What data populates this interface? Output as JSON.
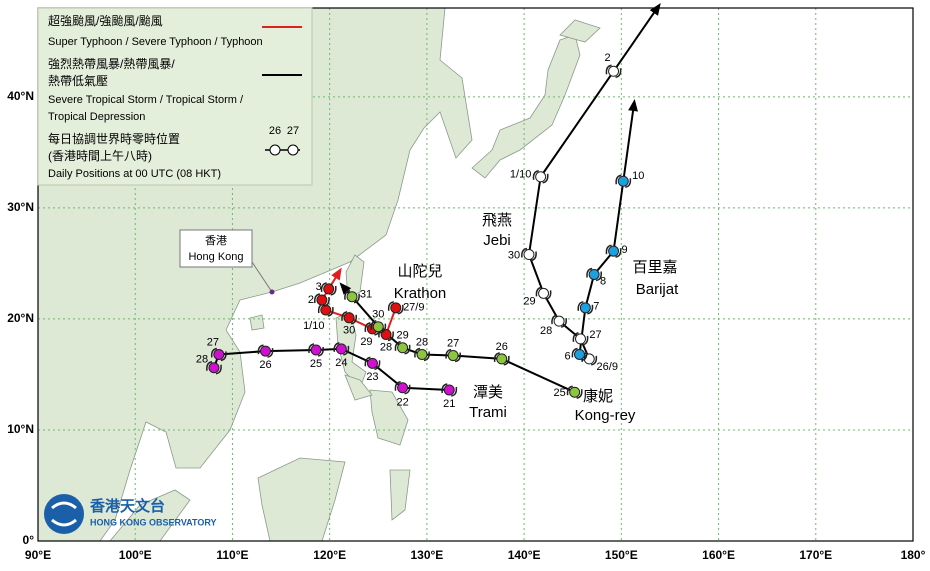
{
  "map": {
    "xlim": [
      90,
      180
    ],
    "ylim": [
      0,
      48
    ],
    "xticks": [
      {
        "value": 90,
        "label": "90°E"
      },
      {
        "value": 100,
        "label": "100°E"
      },
      {
        "value": 110,
        "label": "110°E"
      },
      {
        "value": 120,
        "label": "120°E"
      },
      {
        "value": 130,
        "label": "130°E"
      },
      {
        "value": 140,
        "label": "140°E"
      },
      {
        "value": 150,
        "label": "150°E"
      },
      {
        "value": 160,
        "label": "160°E"
      },
      {
        "value": 170,
        "label": "170°E"
      },
      {
        "value": 180,
        "label": "180°"
      }
    ],
    "yticks": [
      {
        "value": 0,
        "label": "0°"
      },
      {
        "value": 10,
        "label": "10°N"
      },
      {
        "value": 20,
        "label": "20°N"
      },
      {
        "value": 30,
        "label": "30°N"
      },
      {
        "value": 40,
        "label": "40°N"
      }
    ],
    "grid": true,
    "legend": {
      "typhoon_zh": "超強颱風/強颱風/颱風",
      "typhoon_en": "Super Typhoon / Severe Typhoon / Typhoon",
      "typhoon_color": "#e02020",
      "storm_zh_1": "強烈熱帶風暴/熱帶風暴/",
      "storm_zh_2": "熱帶低氣壓",
      "storm_en_1": "Severe Tropical Storm / Tropical Storm /",
      "storm_en_2": "Tropical Depression",
      "storm_color": "#000000",
      "daily_zh_1": "每日協調世界時零時位置",
      "daily_zh_2": "(香港時間上午八時)",
      "daily_en": "Daily Positions at 00 UTC (08 HKT)",
      "sample_days": [
        "26",
        "27"
      ]
    },
    "hong_kong": {
      "zh": "香港",
      "en": "Hong Kong"
    },
    "logo": {
      "zh": "香港天文台",
      "en": "HONG KONG OBSERVATORY"
    },
    "storms": [
      {
        "name_zh": "山陀兒",
        "name_en": "Krathon",
        "color": "#e01010",
        "track_color": "#e02020",
        "points": [
          {
            "label": "27/9",
            "lon": 126.8,
            "lat": 21.0
          },
          {
            "label": "28",
            "lon": 125.8,
            "lat": 18.6
          },
          {
            "label": "29",
            "lon": 124.4,
            "lat": 19.1
          },
          {
            "label": "30",
            "lon": 122.0,
            "lat": 20.1
          },
          {
            "label": "1/10",
            "lon": 119.6,
            "lat": 20.8
          },
          {
            "label": "2",
            "lon": 119.2,
            "lat": 21.7
          },
          {
            "label": "3",
            "lon": 119.9,
            "lat": 22.7
          }
        ]
      },
      {
        "name_zh": "康妮",
        "name_en": "Kong-rey",
        "color": "#8cc63f",
        "track_color": "#000000",
        "points": [
          {
            "label": "25",
            "lon": 145.2,
            "lat": 13.4
          },
          {
            "label": "26",
            "lon": 137.7,
            "lat": 16.4
          },
          {
            "label": "27",
            "lon": 132.7,
            "lat": 16.7
          },
          {
            "label": "28",
            "lon": 129.5,
            "lat": 16.8
          },
          {
            "label": "29",
            "lon": 127.5,
            "lat": 17.4
          },
          {
            "label": "30",
            "lon": 125.0,
            "lat": 19.3
          },
          {
            "label": "31",
            "lon": 122.3,
            "lat": 22.0
          }
        ]
      },
      {
        "name_zh": "潭美",
        "name_en": "Trami",
        "color": "#d010d0",
        "track_color": "#000000",
        "points": [
          {
            "label": "21",
            "lon": 132.3,
            "lat": 13.6
          },
          {
            "label": "22",
            "lon": 127.5,
            "lat": 13.8
          },
          {
            "label": "23",
            "lon": 124.4,
            "lat": 16.0
          },
          {
            "label": "24",
            "lon": 121.2,
            "lat": 17.3
          },
          {
            "label": "25",
            "lon": 118.6,
            "lat": 17.2
          },
          {
            "label": "26",
            "lon": 113.4,
            "lat": 17.1
          },
          {
            "label": "27",
            "lon": 108.6,
            "lat": 16.8
          },
          {
            "label": "28",
            "lon": 108.1,
            "lat": 15.6
          }
        ]
      },
      {
        "name_zh": "飛燕",
        "name_en": "Jebi",
        "color": "#ffffff",
        "track_color": "#000000",
        "points": [
          {
            "label": "26/9",
            "lon": 146.7,
            "lat": 16.4
          },
          {
            "label": "27",
            "lon": 145.8,
            "lat": 18.2
          },
          {
            "label": "28",
            "lon": 143.6,
            "lat": 19.8
          },
          {
            "label": "29",
            "lon": 142.0,
            "lat": 22.3
          },
          {
            "label": "30",
            "lon": 140.5,
            "lat": 25.8
          },
          {
            "label": "1/10",
            "lon": 141.7,
            "lat": 32.8
          },
          {
            "label": "2",
            "lon": 149.2,
            "lat": 42.3
          }
        ]
      },
      {
        "name_zh": "百里嘉",
        "name_en": "Barijat",
        "color": "#1ca0e0",
        "track_color": "#000000",
        "points": [
          {
            "label": "6",
            "lon": 145.7,
            "lat": 16.8
          },
          {
            "label": "7",
            "lon": 146.3,
            "lat": 21.0
          },
          {
            "label": "8",
            "lon": 147.2,
            "lat": 24.0
          },
          {
            "label": "9",
            "lon": 149.2,
            "lat": 26.1
          },
          {
            "label": "10",
            "lon": 150.2,
            "lat": 32.4
          }
        ]
      }
    ]
  }
}
